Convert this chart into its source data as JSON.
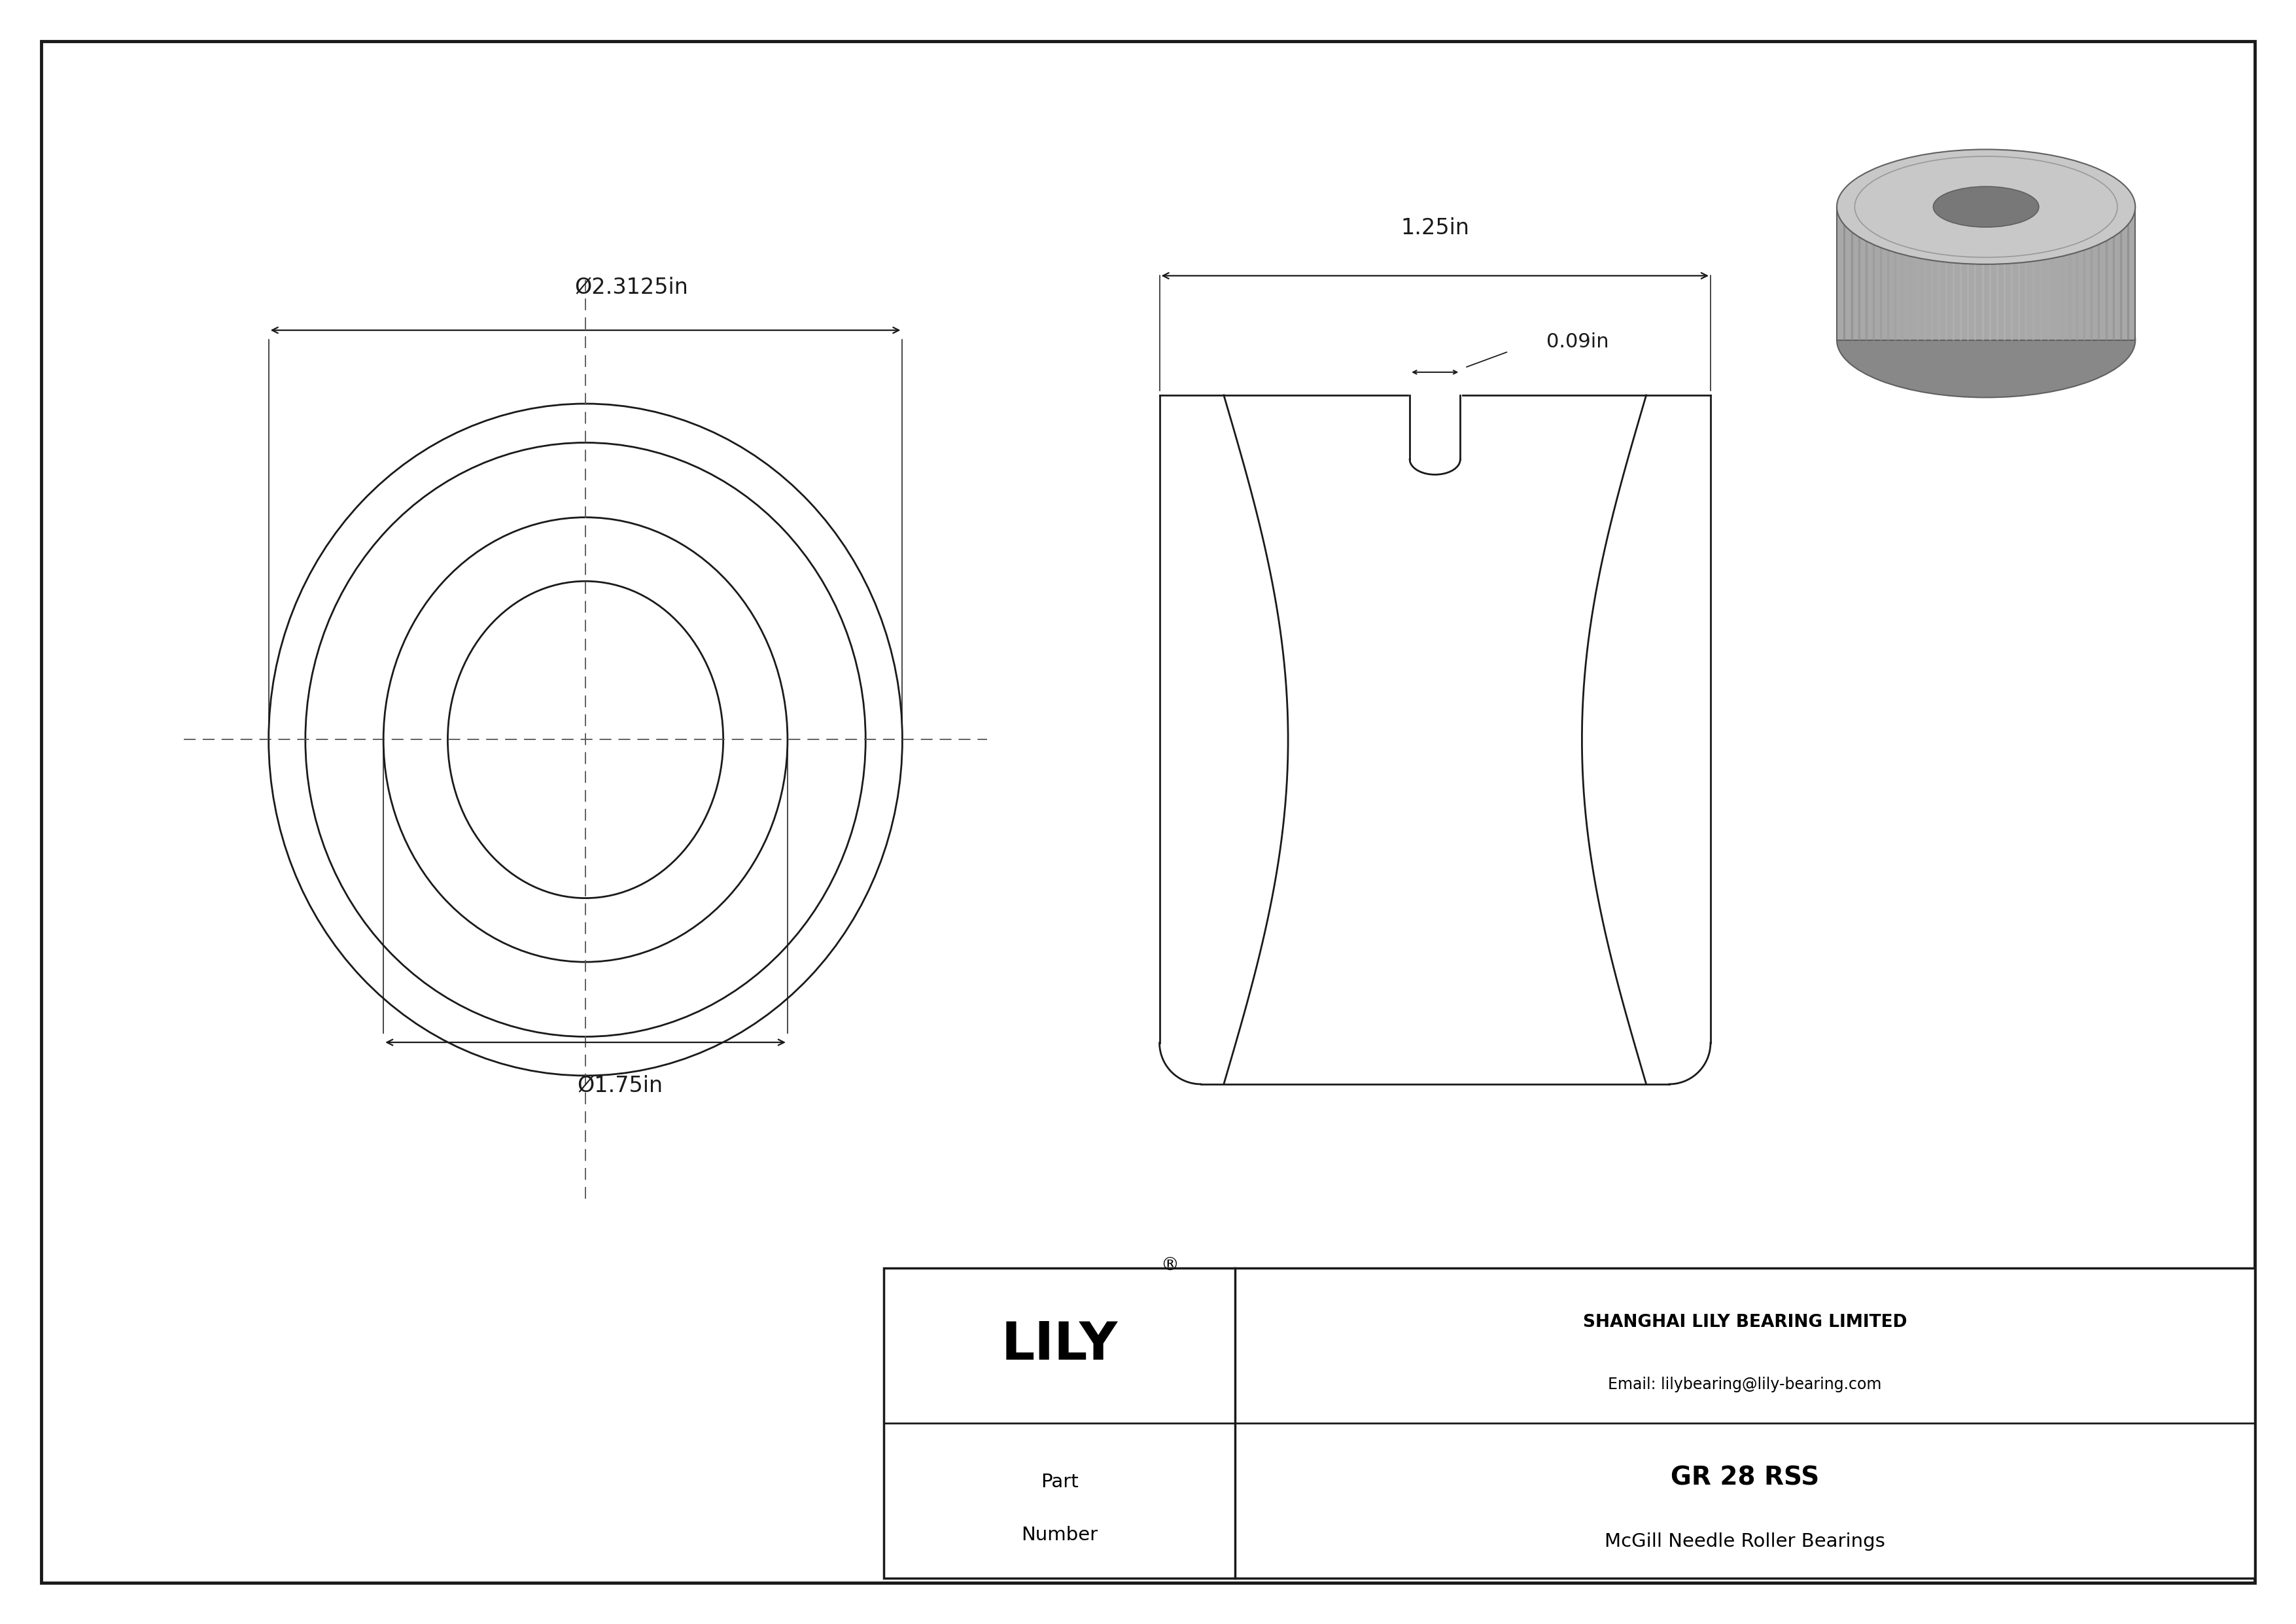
{
  "bg_color": "#ffffff",
  "line_color": "#1a1a1a",
  "dim_color": "#1a1a1a",
  "center_line_color": "#555555",
  "outer_diameter_label": "Ø2.3125in",
  "inner_diameter_label": "Ø1.75in",
  "length_label": "1.25in",
  "groove_label": "0.09in",
  "company": "SHANGHAI LILY BEARING LIMITED",
  "email": "Email: lilybearing@lily-bearing.com",
  "part_label_1": "Part",
  "part_label_2": "Number",
  "part_number": "GR 28 RSS",
  "part_desc": "McGill Needle Roller Bearings",
  "lily_text": "LILY",
  "border_color": "#1a1a1a"
}
